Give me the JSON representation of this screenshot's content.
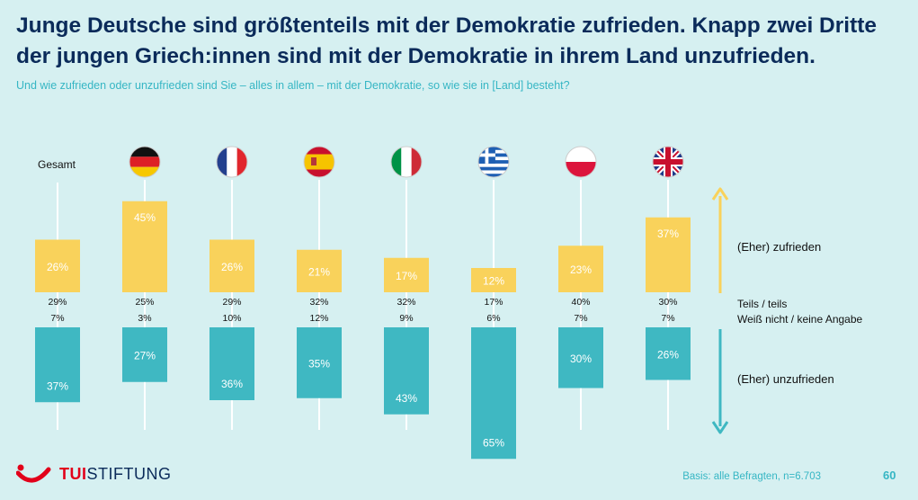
{
  "title_line1": "Junge Deutsche sind größtenteils mit der Demokratie zufrieden. Knapp zwei Dritte",
  "title_line2": "der jungen Griech:innen sind mit der Demokratie in ihrem Land unzufrieden.",
  "subtitle": "Und wie zufrieden oder unzufrieden sind Sie – alles in allem – mit der Demokratie, so wie sie in [Land] besteht?",
  "colors": {
    "satisfied": "#f9d25b",
    "dissatisfied": "#3fb8c2",
    "line": "#ffffff",
    "bg": "#d6f0f1"
  },
  "chart_data": {
    "type": "bar",
    "categories": [
      "Gesamt",
      "Deutschland",
      "Frankreich",
      "Spanien",
      "Italien",
      "Griechenland",
      "Polen",
      "Großbritannien"
    ],
    "flag_icons": [
      "",
      "flag-germany-icon",
      "flag-france-icon",
      "flag-spain-icon",
      "flag-italy-icon",
      "flag-greece-icon",
      "flag-poland-icon",
      "flag-uk-icon"
    ],
    "gesamt_label": "Gesamt",
    "series": [
      {
        "name": "(Eher) zufrieden",
        "values": [
          26,
          45,
          26,
          21,
          17,
          12,
          23,
          37
        ]
      },
      {
        "name": "Teils / teils",
        "values": [
          29,
          25,
          29,
          32,
          32,
          17,
          40,
          30
        ]
      },
      {
        "name": "Weiß nicht / keine Angabe",
        "values": [
          7,
          3,
          10,
          12,
          9,
          6,
          7,
          7
        ]
      },
      {
        "name": "(Eher) unzufrieden",
        "values": [
          37,
          27,
          36,
          35,
          43,
          65,
          30,
          26
        ]
      }
    ],
    "unit": "%"
  },
  "legend": {
    "zufrieden": "(Eher) zufrieden",
    "teils": "Teils / teils",
    "weiss_nicht": "Weiß nicht / keine Angabe",
    "unzufrieden": "(Eher) unzufrieden"
  },
  "footer": {
    "basis": "Basis: alle Befragten, n=6.703",
    "page": "60",
    "logo_tui": "TUI",
    "logo_stiftung": "STIFTUNG"
  }
}
